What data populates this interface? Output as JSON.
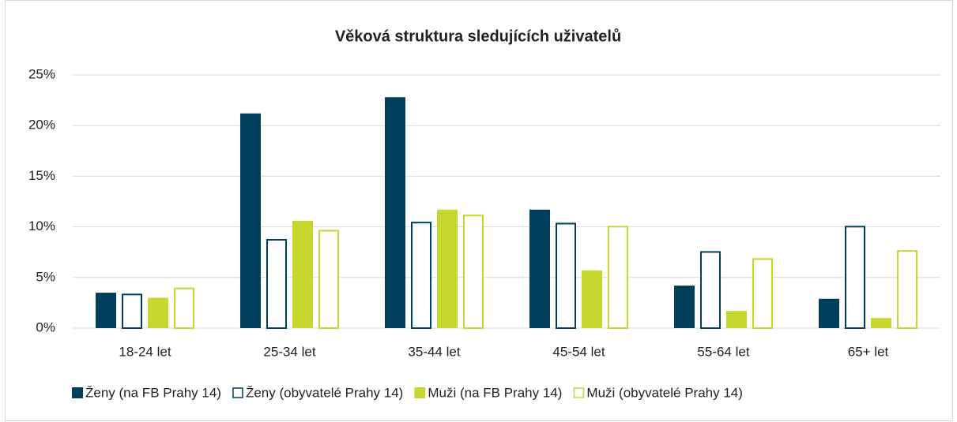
{
  "chart_data": {
    "type": "bar",
    "title": "Věková struktura sledujících uživatelů",
    "categories": [
      "18-24 let",
      "25-34 let",
      "35-44 let",
      "45-54 let",
      "55-64 let",
      "65+ let"
    ],
    "series": [
      {
        "name": "Ženy (na FB Prahy 14)",
        "color": "#003f5c",
        "style": "solid",
        "values": [
          3.5,
          21.2,
          22.8,
          11.7,
          4.2,
          2.9
        ]
      },
      {
        "name": "Ženy (obyvatelé Prahy 14)",
        "color": "#003f5c",
        "style": "outline",
        "values": [
          3.4,
          8.8,
          10.5,
          10.4,
          7.6,
          10.1
        ]
      },
      {
        "name": "Muži (na FB Prahy 14)",
        "color": "#c8d630",
        "style": "solid",
        "values": [
          3.0,
          10.6,
          11.7,
          5.7,
          1.7,
          1.0
        ]
      },
      {
        "name": "Muži (obyvatelé Prahy 14)",
        "color": "#c8d630",
        "style": "outline",
        "values": [
          4.0,
          9.7,
          11.2,
          10.1,
          6.9,
          7.7
        ]
      }
    ],
    "ylim": [
      0,
      25
    ],
    "yticks": [
      {
        "value": 0,
        "label": "0%"
      },
      {
        "value": 5,
        "label": "5%"
      },
      {
        "value": 10,
        "label": "10%"
      },
      {
        "value": 15,
        "label": "15%"
      },
      {
        "value": 20,
        "label": "20%"
      },
      {
        "value": 25,
        "label": "25%"
      }
    ],
    "grid": true,
    "legend": "bottom"
  }
}
